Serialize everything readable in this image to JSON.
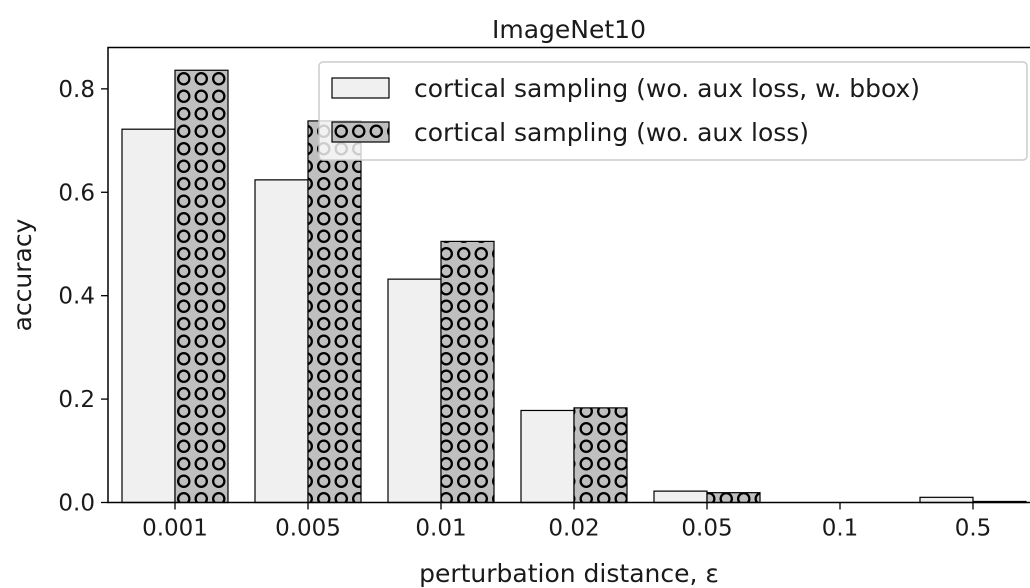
{
  "chart_data": {
    "type": "bar",
    "title": "ImageNet10",
    "xlabel": "perturbation distance, ε",
    "ylabel": "accuracy",
    "categories": [
      "0.001",
      "0.005",
      "0.01",
      "0.02",
      "0.05",
      "0.1",
      "0.5"
    ],
    "series": [
      {
        "name": "cortical sampling (wo. aux loss, w. bbox)",
        "values": [
          0.722,
          0.624,
          0.432,
          0.178,
          0.022,
          0.0,
          0.01
        ],
        "color": "#f0f0f0",
        "pattern": "none"
      },
      {
        "name": "cortical sampling (wo. aux loss)",
        "values": [
          0.836,
          0.738,
          0.505,
          0.183,
          0.019,
          0.0,
          0.002
        ],
        "color": "#bfbfbf",
        "pattern": "circles"
      }
    ],
    "ylim": [
      0,
      0.88
    ],
    "yticks": [
      "0.0",
      "0.2",
      "0.4",
      "0.6",
      "0.8"
    ],
    "ytick_values": [
      0,
      0.2,
      0.4,
      0.6,
      0.8
    ],
    "legend_position": "top-right",
    "grid": false
  }
}
